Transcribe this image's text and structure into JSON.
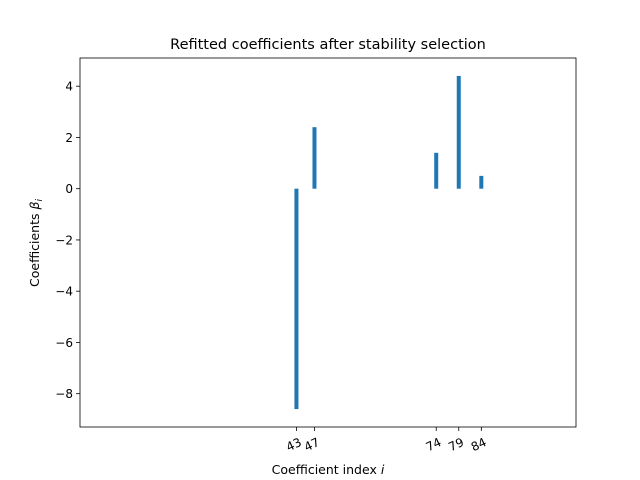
{
  "chart_data": {
    "type": "bar",
    "title": "Refitted coefficients after stability selection",
    "xlabel": "Coefficient index",
    "xlabel_symbol": "i",
    "ylabel": "Coefficients",
    "ylabel_symbol": "β",
    "ylabel_subscript": "i",
    "x": [
      43,
      47,
      74,
      79,
      84
    ],
    "values": [
      -8.6,
      2.4,
      1.4,
      4.4,
      0.5
    ],
    "xlim": [
      -5,
      105
    ],
    "ylim": [
      -9.3,
      5.1
    ],
    "yticks": [
      4,
      2,
      0,
      -2,
      -4,
      -6,
      -8
    ],
    "ytick_labels": [
      "4",
      "2",
      "0",
      "−2",
      "−4",
      "−6",
      "−8"
    ],
    "xtick_labels": [
      "43",
      "47",
      "74",
      "79",
      "84"
    ],
    "xtick_rotation": "~25 degrees",
    "bar_color": "#1f77b4",
    "grid": false,
    "legend": "none"
  }
}
